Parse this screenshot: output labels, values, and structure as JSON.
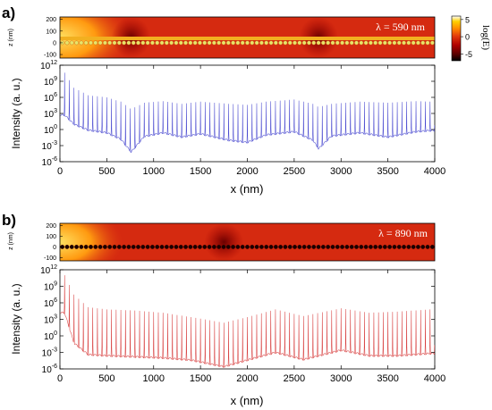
{
  "colorbar": {
    "label": "log(E)",
    "ticks": [
      "5",
      "0",
      "-5"
    ],
    "tick_values": [
      5,
      0,
      -5
    ],
    "range": [
      -7,
      6
    ],
    "colors": [
      "#000000",
      "#5a0000",
      "#b00000",
      "#e23a0c",
      "#ff8a00",
      "#ffd000",
      "#ffffff"
    ]
  },
  "chart_data": [
    {
      "panel_label": "a)",
      "type": "line",
      "field_map": {
        "lambda_label": "λ = 590 nm",
        "z_label": "z (nm)",
        "z_ticks": [
          "200",
          "100",
          "0",
          "-100"
        ],
        "z_tick_values": [
          200,
          100,
          0,
          -100
        ],
        "z_range": [
          -130,
          220
        ],
        "particle_z": 0,
        "particle_count": 79,
        "particle_color": "#e8e46a",
        "dark_spots_x": [
          760,
          2760
        ]
      },
      "xlabel": "x (nm)",
      "ylabel": "Intensity (a. u.)",
      "xlim": [
        0,
        4000
      ],
      "ylim_exp": [
        -6,
        12
      ],
      "x_ticks": [
        0,
        500,
        1000,
        1500,
        2000,
        2500,
        3000,
        3500,
        4000
      ],
      "y_ticks": [
        {
          "base": "10",
          "exp": "12",
          "v": 12
        },
        {
          "base": "10",
          "exp": "9",
          "v": 9
        },
        {
          "base": "10",
          "exp": "6",
          "v": 6
        },
        {
          "base": "10",
          "exp": "3",
          "v": 3
        },
        {
          "base": "10",
          "exp": "0",
          "v": 0
        },
        {
          "base": "10",
          "exp": "-3",
          "v": -3
        },
        {
          "base": "10",
          "exp": "-6",
          "v": -6
        }
      ],
      "line_color": "#4a4ad0",
      "spike_period": 50,
      "envelope_max_log": [
        [
          50,
          10.6
        ],
        [
          150,
          7.8
        ],
        [
          300,
          6.4
        ],
        [
          500,
          6.0
        ],
        [
          650,
          5.2
        ],
        [
          760,
          3.8
        ],
        [
          900,
          5.0
        ],
        [
          1100,
          5.3
        ],
        [
          1300,
          4.8
        ],
        [
          1500,
          5.2
        ],
        [
          1800,
          4.8
        ],
        [
          2000,
          4.6
        ],
        [
          2200,
          5.2
        ],
        [
          2500,
          5.6
        ],
        [
          2700,
          4.8
        ],
        [
          2760,
          4.2
        ],
        [
          2900,
          4.8
        ],
        [
          3200,
          5.2
        ],
        [
          3500,
          5.0
        ],
        [
          3800,
          5.3
        ],
        [
          3950,
          5.2
        ]
      ],
      "envelope_min_log": [
        [
          50,
          2.5
        ],
        [
          150,
          0.8
        ],
        [
          300,
          -0.3
        ],
        [
          500,
          -0.8
        ],
        [
          650,
          -2.0
        ],
        [
          760,
          -4.4
        ],
        [
          900,
          -1.5
        ],
        [
          1100,
          -0.8
        ],
        [
          1300,
          -1.6
        ],
        [
          1500,
          -1.0
        ],
        [
          1800,
          -2.2
        ],
        [
          2000,
          -2.6
        ],
        [
          2200,
          -1.2
        ],
        [
          2500,
          -0.6
        ],
        [
          2700,
          -2.2
        ],
        [
          2760,
          -3.8
        ],
        [
          2900,
          -1.4
        ],
        [
          3200,
          -0.8
        ],
        [
          3500,
          -1.6
        ],
        [
          3800,
          -0.6
        ],
        [
          3950,
          -0.4
        ]
      ]
    },
    {
      "panel_label": "b)",
      "type": "line",
      "field_map": {
        "lambda_label": "λ = 890 nm",
        "z_label": "z (nm)",
        "z_ticks": [
          "200",
          "100",
          "0",
          "-100"
        ],
        "z_tick_values": [
          200,
          100,
          0,
          -100
        ],
        "z_range": [
          -130,
          220
        ],
        "particle_z": 0,
        "particle_count": 79,
        "particle_color": "#1a0000",
        "dark_spots_x": [
          1750
        ]
      },
      "xlabel": "x (nm)",
      "ylabel": "Intensity (a. u.)",
      "xlim": [
        0,
        4000
      ],
      "ylim_exp": [
        -6,
        12
      ],
      "x_ticks": [
        0,
        500,
        1000,
        1500,
        2000,
        2500,
        3000,
        3500,
        4000
      ],
      "y_ticks": [
        {
          "base": "10",
          "exp": "12",
          "v": 12
        },
        {
          "base": "10",
          "exp": "9",
          "v": 9
        },
        {
          "base": "10",
          "exp": "6",
          "v": 6
        },
        {
          "base": "10",
          "exp": "3",
          "v": 3
        },
        {
          "base": "10",
          "exp": "0",
          "v": 0
        },
        {
          "base": "10",
          "exp": "-3",
          "v": -3
        },
        {
          "base": "10",
          "exp": "-6",
          "v": -6
        }
      ],
      "line_color": "#d84040",
      "spike_period": 50,
      "envelope_max_log": [
        [
          50,
          11.0
        ],
        [
          150,
          7.5
        ],
        [
          300,
          5.2
        ],
        [
          500,
          4.8
        ],
        [
          800,
          4.6
        ],
        [
          1100,
          4.2
        ],
        [
          1400,
          3.4
        ],
        [
          1750,
          2.4
        ],
        [
          2000,
          3.4
        ],
        [
          2300,
          4.8
        ],
        [
          2600,
          3.6
        ],
        [
          3000,
          5.0
        ],
        [
          3300,
          4.2
        ],
        [
          3600,
          4.4
        ],
        [
          3950,
          4.8
        ]
      ],
      "envelope_min_log": [
        [
          50,
          4.0
        ],
        [
          150,
          -1.5
        ],
        [
          300,
          -3.6
        ],
        [
          500,
          -3.8
        ],
        [
          800,
          -4.0
        ],
        [
          1100,
          -4.2
        ],
        [
          1400,
          -4.6
        ],
        [
          1750,
          -5.8
        ],
        [
          2000,
          -4.6
        ],
        [
          2300,
          -3.2
        ],
        [
          2600,
          -4.5
        ],
        [
          3000,
          -2.8
        ],
        [
          3300,
          -3.8
        ],
        [
          3600,
          -3.8
        ],
        [
          3950,
          -3.4
        ]
      ]
    }
  ]
}
